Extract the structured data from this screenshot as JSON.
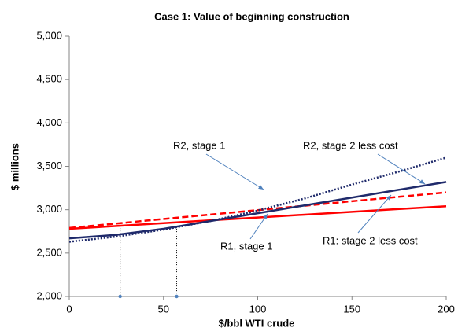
{
  "chart_data": {
    "type": "line",
    "title": "Case 1: Value of beginning construction",
    "x_label": "$/bbl WTI crude",
    "y_label": "$ millions",
    "x": [
      0,
      25,
      50,
      75,
      100,
      125,
      150,
      175,
      200
    ],
    "series": [
      {
        "name": "R1, stage 1",
        "color": "#ff0000",
        "style": "solid",
        "values": [
          2780,
          2812,
          2845,
          2878,
          2910,
          2943,
          2975,
          3008,
          3040
        ]
      },
      {
        "name": "R1: stage 2 less cost",
        "color": "#ff0000",
        "style": "dashed",
        "values": [
          2790,
          2841,
          2893,
          2944,
          2995,
          3046,
          3098,
          3149,
          3200
        ]
      },
      {
        "name": "R2, stage 1",
        "color": "#1f2a6b",
        "style": "dotted",
        "values": [
          2630,
          2690,
          2770,
          2870,
          2990,
          3130,
          3290,
          3440,
          3600
        ]
      },
      {
        "name": "R2, stage 2 less cost",
        "color": "#1f2a6b",
        "style": "solid",
        "values": [
          2670,
          2710,
          2780,
          2870,
          2960,
          3050,
          3140,
          3230,
          3320
        ]
      }
    ],
    "drop_lines": [
      {
        "x": 27,
        "y": 2815
      },
      {
        "x": 57,
        "y": 2805
      }
    ],
    "xlim": [
      0,
      200
    ],
    "xticks": [
      0,
      50,
      100,
      150,
      200
    ],
    "ylim": [
      2000,
      5000
    ],
    "yticks": [
      {
        "value": 2000,
        "label": "2,000"
      },
      {
        "value": 2500,
        "label": "2,500"
      },
      {
        "value": 3000,
        "label": "3,000"
      },
      {
        "value": 3500,
        "label": "3,500"
      },
      {
        "value": 4000,
        "label": "4,000"
      },
      {
        "value": 4500,
        "label": "4,500"
      },
      {
        "value": 5000,
        "label": "5,000"
      }
    ],
    "grid": false
  }
}
